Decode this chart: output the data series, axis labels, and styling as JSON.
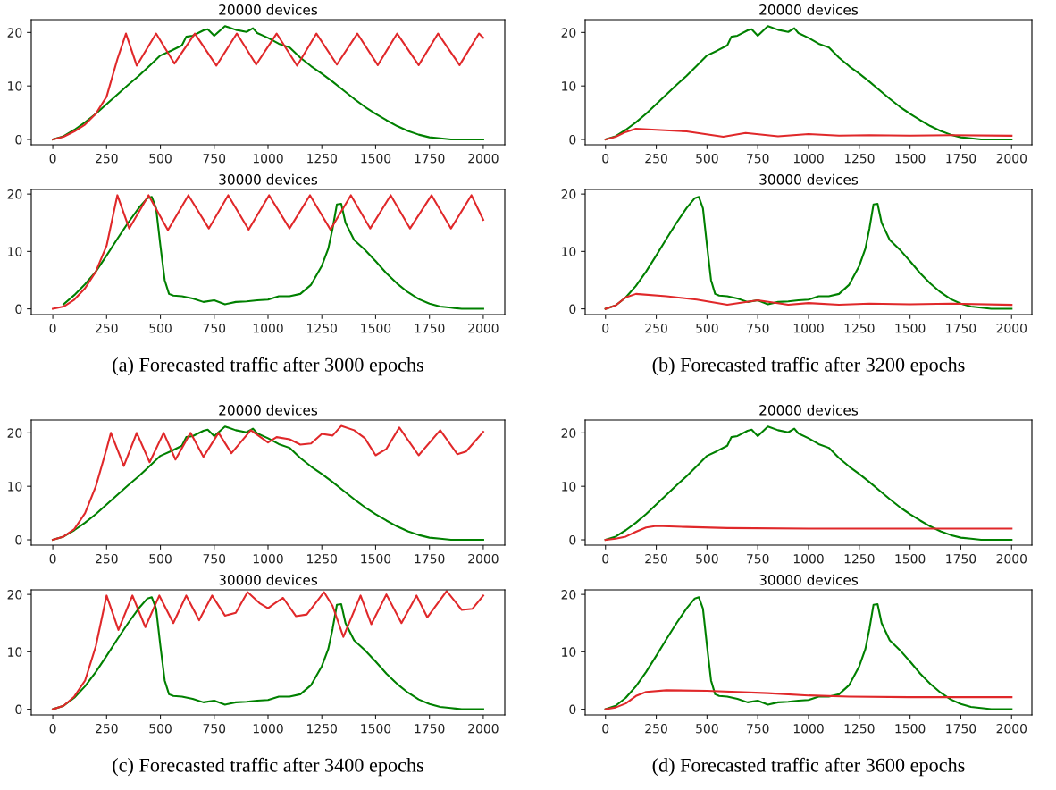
{
  "chart_data": [
    {
      "type": "line",
      "title": "20000 devices",
      "xlim": [
        -100,
        2100
      ],
      "xticks": [
        0,
        250,
        500,
        750,
        1000,
        1250,
        1500,
        1750,
        2000
      ],
      "ylim": [
        -1,
        22.4
      ],
      "yticks": [
        0,
        10,
        20
      ],
      "grid": false,
      "legend": false,
      "series": [
        {
          "color": "#008000",
          "x": [
            0,
            50,
            100,
            150,
            200,
            250,
            300,
            350,
            400,
            450,
            500,
            550,
            600,
            620,
            650,
            700,
            720,
            750,
            800,
            850,
            900,
            930,
            950,
            1000,
            1050,
            1100,
            1150,
            1200,
            1250,
            1300,
            1350,
            1400,
            1450,
            1500,
            1550,
            1600,
            1650,
            1700,
            1750,
            1800,
            1850,
            1900,
            1950,
            2000
          ],
          "values": [
            0,
            0.6,
            1.8,
            3.2,
            4.8,
            6.6,
            8.4,
            10.2,
            11.9,
            13.8,
            15.7,
            16.6,
            17.6,
            19.2,
            19.4,
            20.4,
            20.6,
            19.4,
            21.2,
            20.5,
            20.1,
            20.8,
            19.9,
            19,
            17.9,
            17.2,
            15.3,
            13.7,
            12.3,
            10.8,
            9.2,
            7.6,
            6.1,
            4.8,
            3.6,
            2.5,
            1.6,
            0.9,
            0.4,
            0.2,
            0,
            0,
            0,
            0
          ]
        },
        {
          "color": "#e0282a",
          "x": [
            0,
            50,
            100,
            150,
            200,
            250,
            300,
            340,
            390,
            480,
            565,
            660,
            760,
            855,
            945,
            1040,
            1135,
            1225,
            1320,
            1415,
            1510,
            1600,
            1700,
            1790,
            1890,
            1980,
            2000
          ],
          "values": [
            0,
            0.5,
            1.5,
            2.8,
            4.8,
            8,
            15,
            19.8,
            13.8,
            19.8,
            14.2,
            19.8,
            13.8,
            19.8,
            14,
            19.8,
            13.8,
            19.8,
            14,
            19.8,
            13.9,
            19.8,
            13.9,
            19.8,
            13.9,
            19.8,
            19
          ]
        }
      ]
    },
    {
      "type": "line",
      "title": "30000 devices",
      "xlim": [
        -100,
        2100
      ],
      "xticks": [
        0,
        250,
        500,
        750,
        1000,
        1250,
        1500,
        1750,
        2000
      ],
      "ylim": [
        -1,
        20.8
      ],
      "yticks": [
        0,
        10,
        20
      ],
      "grid": false,
      "legend": false,
      "annotations": [
        "(a) Forecasted traffic after 3000 epochs"
      ],
      "series": [
        {
          "color": "#008000",
          "x": [
            50,
            100,
            150,
            200,
            250,
            300,
            350,
            400,
            440,
            460,
            480,
            500,
            520,
            540,
            560,
            600,
            650,
            700,
            750,
            800,
            850,
            900,
            950,
            1000,
            1050,
            1100,
            1150,
            1200,
            1250,
            1280,
            1300,
            1320,
            1340,
            1360,
            1400,
            1450,
            1500,
            1550,
            1600,
            1650,
            1700,
            1750,
            1800,
            1850,
            1900,
            2000
          ],
          "values": [
            0.8,
            2.4,
            4.3,
            6.5,
            9.3,
            12.2,
            15,
            17.6,
            19.3,
            19.5,
            17.5,
            11,
            5,
            2.6,
            2.3,
            2.2,
            1.8,
            1.2,
            1.5,
            0.8,
            1.2,
            1.3,
            1.5,
            1.6,
            2.2,
            2.2,
            2.6,
            4.2,
            7.5,
            10.5,
            14,
            18.2,
            18.3,
            15,
            12,
            10.3,
            8.3,
            6.2,
            4.4,
            2.9,
            1.7,
            0.9,
            0.4,
            0.2,
            0,
            0
          ]
        },
        {
          "color": "#e0282a",
          "x": [
            0,
            50,
            100,
            150,
            200,
            250,
            300,
            355,
            445,
            535,
            630,
            725,
            815,
            910,
            1005,
            1100,
            1195,
            1290,
            1385,
            1475,
            1570,
            1660,
            1760,
            1850,
            1945,
            2000
          ],
          "values": [
            0,
            0.4,
            1.6,
            3.6,
            6.5,
            11,
            19.8,
            14,
            19.8,
            13.7,
            19.8,
            14,
            19.8,
            13.8,
            19.8,
            14,
            19.8,
            13.8,
            19.8,
            14,
            19.8,
            14,
            19.8,
            14,
            19.8,
            15.5
          ]
        }
      ]
    },
    {
      "type": "line",
      "title": "20000 devices",
      "xlim": [
        -100,
        2100
      ],
      "xticks": [
        0,
        250,
        500,
        750,
        1000,
        1250,
        1500,
        1750,
        2000
      ],
      "ylim": [
        -1,
        22.4
      ],
      "yticks": [
        0,
        10,
        20
      ],
      "grid": false,
      "legend": false,
      "series": [
        {
          "color": "#008000",
          "x": [
            0,
            50,
            100,
            150,
            200,
            250,
            300,
            350,
            400,
            450,
            500,
            550,
            600,
            620,
            650,
            700,
            720,
            750,
            800,
            850,
            900,
            930,
            950,
            1000,
            1050,
            1100,
            1150,
            1200,
            1250,
            1300,
            1350,
            1400,
            1450,
            1500,
            1550,
            1600,
            1650,
            1700,
            1750,
            1800,
            1850,
            1900,
            1950,
            2000
          ],
          "values": [
            0,
            0.6,
            1.8,
            3.2,
            4.8,
            6.6,
            8.4,
            10.2,
            11.9,
            13.8,
            15.7,
            16.6,
            17.6,
            19.2,
            19.4,
            20.4,
            20.6,
            19.4,
            21.2,
            20.5,
            20.1,
            20.8,
            19.9,
            19,
            17.9,
            17.2,
            15.3,
            13.7,
            12.3,
            10.8,
            9.2,
            7.6,
            6.1,
            4.8,
            3.6,
            2.5,
            1.6,
            0.9,
            0.4,
            0.2,
            0,
            0,
            0,
            0
          ]
        },
        {
          "color": "#e0282a",
          "x": [
            0,
            50,
            100,
            150,
            250,
            400,
            580,
            690,
            850,
            1000,
            1150,
            1300,
            1500,
            1700,
            2000
          ],
          "values": [
            0,
            0.5,
            1.4,
            2,
            1.8,
            1.5,
            0.5,
            1.2,
            0.6,
            1,
            0.7,
            0.8,
            0.7,
            0.8,
            0.7
          ]
        }
      ]
    },
    {
      "type": "line",
      "title": "30000 devices",
      "xlim": [
        -100,
        2100
      ],
      "xticks": [
        0,
        250,
        500,
        750,
        1000,
        1250,
        1500,
        1750,
        2000
      ],
      "ylim": [
        -1,
        20.8
      ],
      "yticks": [
        0,
        10,
        20
      ],
      "grid": false,
      "legend": false,
      "annotations": [
        "(b) Forecasted traffic after 3200 epochs"
      ],
      "series": [
        {
          "color": "#008000",
          "x": [
            0,
            50,
            100,
            150,
            200,
            250,
            300,
            350,
            400,
            440,
            460,
            480,
            500,
            520,
            540,
            560,
            600,
            650,
            700,
            750,
            800,
            850,
            900,
            950,
            1000,
            1050,
            1100,
            1150,
            1200,
            1250,
            1280,
            1300,
            1320,
            1340,
            1360,
            1400,
            1450,
            1500,
            1550,
            1600,
            1650,
            1700,
            1750,
            1800,
            1850,
            1900,
            2000
          ],
          "values": [
            0,
            0.6,
            2,
            4,
            6.5,
            9.3,
            12.2,
            15,
            17.6,
            19.3,
            19.5,
            17.5,
            11,
            5,
            2.6,
            2.3,
            2.2,
            1.8,
            1.2,
            1.5,
            0.8,
            1.2,
            1.3,
            1.5,
            1.6,
            2.2,
            2.2,
            2.6,
            4.2,
            7.5,
            10.5,
            14,
            18.2,
            18.3,
            15,
            12,
            10.3,
            8.3,
            6.2,
            4.4,
            2.9,
            1.7,
            0.9,
            0.4,
            0.2,
            0,
            0
          ]
        },
        {
          "color": "#e0282a",
          "x": [
            0,
            50,
            100,
            150,
            300,
            450,
            600,
            750,
            900,
            1000,
            1150,
            1300,
            1500,
            1700,
            2000
          ],
          "values": [
            0,
            0.6,
            2,
            2.6,
            2.2,
            1.6,
            0.7,
            1.5,
            0.7,
            1,
            0.7,
            0.9,
            0.8,
            0.9,
            0.7
          ]
        }
      ]
    },
    {
      "type": "line",
      "title": "20000 devices",
      "xlim": [
        -100,
        2100
      ],
      "xticks": [
        0,
        250,
        500,
        750,
        1000,
        1250,
        1500,
        1750,
        2000
      ],
      "ylim": [
        -1,
        22.4
      ],
      "yticks": [
        0,
        10,
        20
      ],
      "grid": false,
      "legend": false,
      "series": [
        {
          "color": "#008000",
          "x": [
            0,
            50,
            100,
            150,
            200,
            250,
            300,
            350,
            400,
            450,
            500,
            550,
            600,
            620,
            650,
            700,
            720,
            750,
            800,
            850,
            900,
            930,
            950,
            1000,
            1050,
            1100,
            1150,
            1200,
            1250,
            1300,
            1350,
            1400,
            1450,
            1500,
            1550,
            1600,
            1650,
            1700,
            1750,
            1800,
            1850,
            1900,
            1950,
            2000
          ],
          "values": [
            0,
            0.6,
            1.8,
            3.2,
            4.8,
            6.6,
            8.4,
            10.2,
            11.9,
            13.8,
            15.7,
            16.6,
            17.6,
            19.2,
            19.4,
            20.4,
            20.6,
            19.4,
            21.2,
            20.5,
            20.1,
            20.8,
            19.9,
            19,
            17.9,
            17.2,
            15.3,
            13.7,
            12.3,
            10.8,
            9.2,
            7.6,
            6.1,
            4.8,
            3.6,
            2.5,
            1.6,
            0.9,
            0.4,
            0.2,
            0,
            0,
            0,
            0
          ]
        },
        {
          "color": "#e0282a",
          "x": [
            0,
            50,
            100,
            150,
            200,
            250,
            270,
            330,
            390,
            450,
            515,
            570,
            640,
            700,
            770,
            830,
            920,
            1000,
            1040,
            1100,
            1150,
            1200,
            1250,
            1300,
            1340,
            1400,
            1450,
            1500,
            1550,
            1610,
            1700,
            1800,
            1880,
            1920,
            2000
          ],
          "values": [
            0,
            0.6,
            2,
            5,
            10,
            17,
            20,
            13.8,
            20,
            14.5,
            20,
            15,
            20,
            15.5,
            20,
            16.2,
            20.5,
            18.2,
            19.2,
            18.8,
            17.8,
            18,
            19.8,
            19.5,
            21.3,
            20.5,
            19,
            15.8,
            17,
            21,
            15.8,
            20.5,
            16,
            16.5,
            20.2
          ]
        }
      ]
    },
    {
      "type": "line",
      "title": "30000 devices",
      "xlim": [
        -100,
        2100
      ],
      "xticks": [
        0,
        250,
        500,
        750,
        1000,
        1250,
        1500,
        1750,
        2000
      ],
      "ylim": [
        -1,
        20.8
      ],
      "yticks": [
        0,
        10,
        20
      ],
      "grid": false,
      "legend": false,
      "annotations": [
        "(c) Forecasted traffic after 3400 epochs"
      ],
      "series": [
        {
          "color": "#008000",
          "x": [
            0,
            50,
            100,
            150,
            200,
            250,
            300,
            350,
            400,
            440,
            460,
            480,
            500,
            520,
            540,
            560,
            600,
            650,
            700,
            750,
            800,
            850,
            900,
            950,
            1000,
            1050,
            1100,
            1150,
            1200,
            1250,
            1280,
            1300,
            1320,
            1340,
            1360,
            1400,
            1450,
            1500,
            1550,
            1600,
            1650,
            1700,
            1750,
            1800,
            1850,
            1900,
            2000
          ],
          "values": [
            0,
            0.6,
            2,
            4,
            6.5,
            9.3,
            12.2,
            15,
            17.6,
            19.3,
            19.5,
            17.5,
            11,
            5,
            2.6,
            2.3,
            2.2,
            1.8,
            1.2,
            1.5,
            0.8,
            1.2,
            1.3,
            1.5,
            1.6,
            2.2,
            2.2,
            2.6,
            4.2,
            7.5,
            10.5,
            14,
            18.2,
            18.3,
            15,
            12,
            10.3,
            8.3,
            6.2,
            4.4,
            2.9,
            1.7,
            0.9,
            0.4,
            0.2,
            0,
            0
          ]
        },
        {
          "color": "#e0282a",
          "x": [
            0,
            50,
            100,
            150,
            200,
            250,
            305,
            370,
            430,
            495,
            560,
            620,
            680,
            740,
            800,
            850,
            905,
            960,
            1000,
            1030,
            1070,
            1130,
            1180,
            1260,
            1300,
            1350,
            1430,
            1480,
            1550,
            1620,
            1690,
            1740,
            1830,
            1900,
            1950,
            2000
          ],
          "values": [
            0,
            0.6,
            2.2,
            5,
            11,
            19.8,
            13.8,
            19.8,
            14.3,
            19.8,
            15,
            19.8,
            15.5,
            19.8,
            16.3,
            16.8,
            20.4,
            18.5,
            17.6,
            18.4,
            19.4,
            16.2,
            16.5,
            20.4,
            18,
            12.6,
            19.8,
            14.8,
            20,
            15,
            19.8,
            16,
            20.6,
            17.3,
            17.5,
            19.8
          ]
        }
      ]
    },
    {
      "type": "line",
      "title": "20000 devices",
      "xlim": [
        -100,
        2100
      ],
      "xticks": [
        0,
        250,
        500,
        750,
        1000,
        1250,
        1500,
        1750,
        2000
      ],
      "ylim": [
        -1,
        22.4
      ],
      "yticks": [
        0,
        10,
        20
      ],
      "grid": false,
      "legend": false,
      "series": [
        {
          "color": "#008000",
          "x": [
            0,
            50,
            100,
            150,
            200,
            250,
            300,
            350,
            400,
            450,
            500,
            550,
            600,
            620,
            650,
            700,
            720,
            750,
            800,
            850,
            900,
            930,
            950,
            1000,
            1050,
            1100,
            1150,
            1200,
            1250,
            1300,
            1350,
            1400,
            1450,
            1500,
            1550,
            1600,
            1650,
            1700,
            1750,
            1800,
            1850,
            1900,
            1950,
            2000
          ],
          "values": [
            0,
            0.6,
            1.8,
            3.2,
            4.8,
            6.6,
            8.4,
            10.2,
            11.9,
            13.8,
            15.7,
            16.6,
            17.6,
            19.2,
            19.4,
            20.4,
            20.6,
            19.4,
            21.2,
            20.5,
            20.1,
            20.8,
            19.9,
            19,
            17.9,
            17.2,
            15.3,
            13.7,
            12.3,
            10.8,
            9.2,
            7.6,
            6.1,
            4.8,
            3.6,
            2.5,
            1.6,
            0.9,
            0.4,
            0.2,
            0,
            0,
            0,
            0
          ]
        },
        {
          "color": "#e0282a",
          "x": [
            0,
            50,
            100,
            150,
            200,
            250,
            400,
            600,
            1000,
            2000
          ],
          "values": [
            0,
            0.2,
            0.6,
            1.5,
            2.3,
            2.6,
            2.4,
            2.2,
            2.1,
            2.1
          ]
        }
      ]
    },
    {
      "type": "line",
      "title": "30000 devices",
      "xlim": [
        -100,
        2100
      ],
      "xticks": [
        0,
        250,
        500,
        750,
        1000,
        1250,
        1500,
        1750,
        2000
      ],
      "ylim": [
        -1,
        20.8
      ],
      "yticks": [
        0,
        10,
        20
      ],
      "grid": false,
      "legend": false,
      "annotations": [
        "(d) Forecasted traffic after 3600 epochs"
      ],
      "series": [
        {
          "color": "#008000",
          "x": [
            0,
            50,
            100,
            150,
            200,
            250,
            300,
            350,
            400,
            440,
            460,
            480,
            500,
            520,
            540,
            560,
            600,
            650,
            700,
            750,
            800,
            850,
            900,
            950,
            1000,
            1050,
            1100,
            1150,
            1200,
            1250,
            1280,
            1300,
            1320,
            1340,
            1360,
            1400,
            1450,
            1500,
            1550,
            1600,
            1650,
            1700,
            1750,
            1800,
            1850,
            1900,
            2000
          ],
          "values": [
            0,
            0.6,
            2,
            4,
            6.5,
            9.3,
            12.2,
            15,
            17.6,
            19.3,
            19.5,
            17.5,
            11,
            5,
            2.6,
            2.3,
            2.2,
            1.8,
            1.2,
            1.5,
            0.8,
            1.2,
            1.3,
            1.5,
            1.6,
            2.2,
            2.2,
            2.6,
            4.2,
            7.5,
            10.5,
            14,
            18.2,
            18.3,
            15,
            12,
            10.3,
            8.3,
            6.2,
            4.4,
            2.9,
            1.7,
            0.9,
            0.4,
            0.2,
            0,
            0
          ]
        },
        {
          "color": "#e0282a",
          "x": [
            0,
            50,
            100,
            150,
            200,
            300,
            500,
            800,
            1000,
            1200,
            1500,
            2000
          ],
          "values": [
            0,
            0.3,
            1,
            2.3,
            3,
            3.3,
            3.2,
            2.8,
            2.4,
            2.2,
            2.1,
            2.1
          ]
        }
      ]
    }
  ]
}
